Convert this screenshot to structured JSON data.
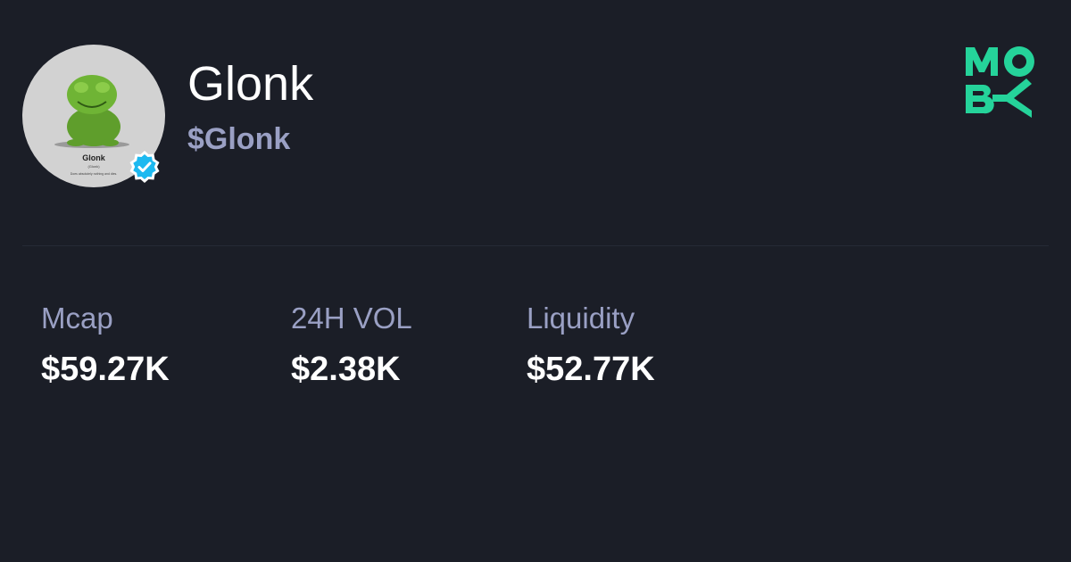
{
  "token": {
    "name": "Glonk",
    "ticker": "$Glonk",
    "avatar_caption": "Glonk",
    "avatar_subcaption": "(Glonk)",
    "avatar_tagline": "Does absolutely nothing and dies.",
    "verified": true
  },
  "brand": {
    "logo_text": "MOBY",
    "color": "#25d39a"
  },
  "stats": [
    {
      "label": "Mcap",
      "value": "$59.27K"
    },
    {
      "label": "24H VOL",
      "value": "$2.38K"
    },
    {
      "label": "Liquidity",
      "value": "$52.77K"
    }
  ],
  "colors": {
    "background": "#1b1e27",
    "muted_text": "#9aa0c4",
    "verified": "#1db9f0"
  }
}
